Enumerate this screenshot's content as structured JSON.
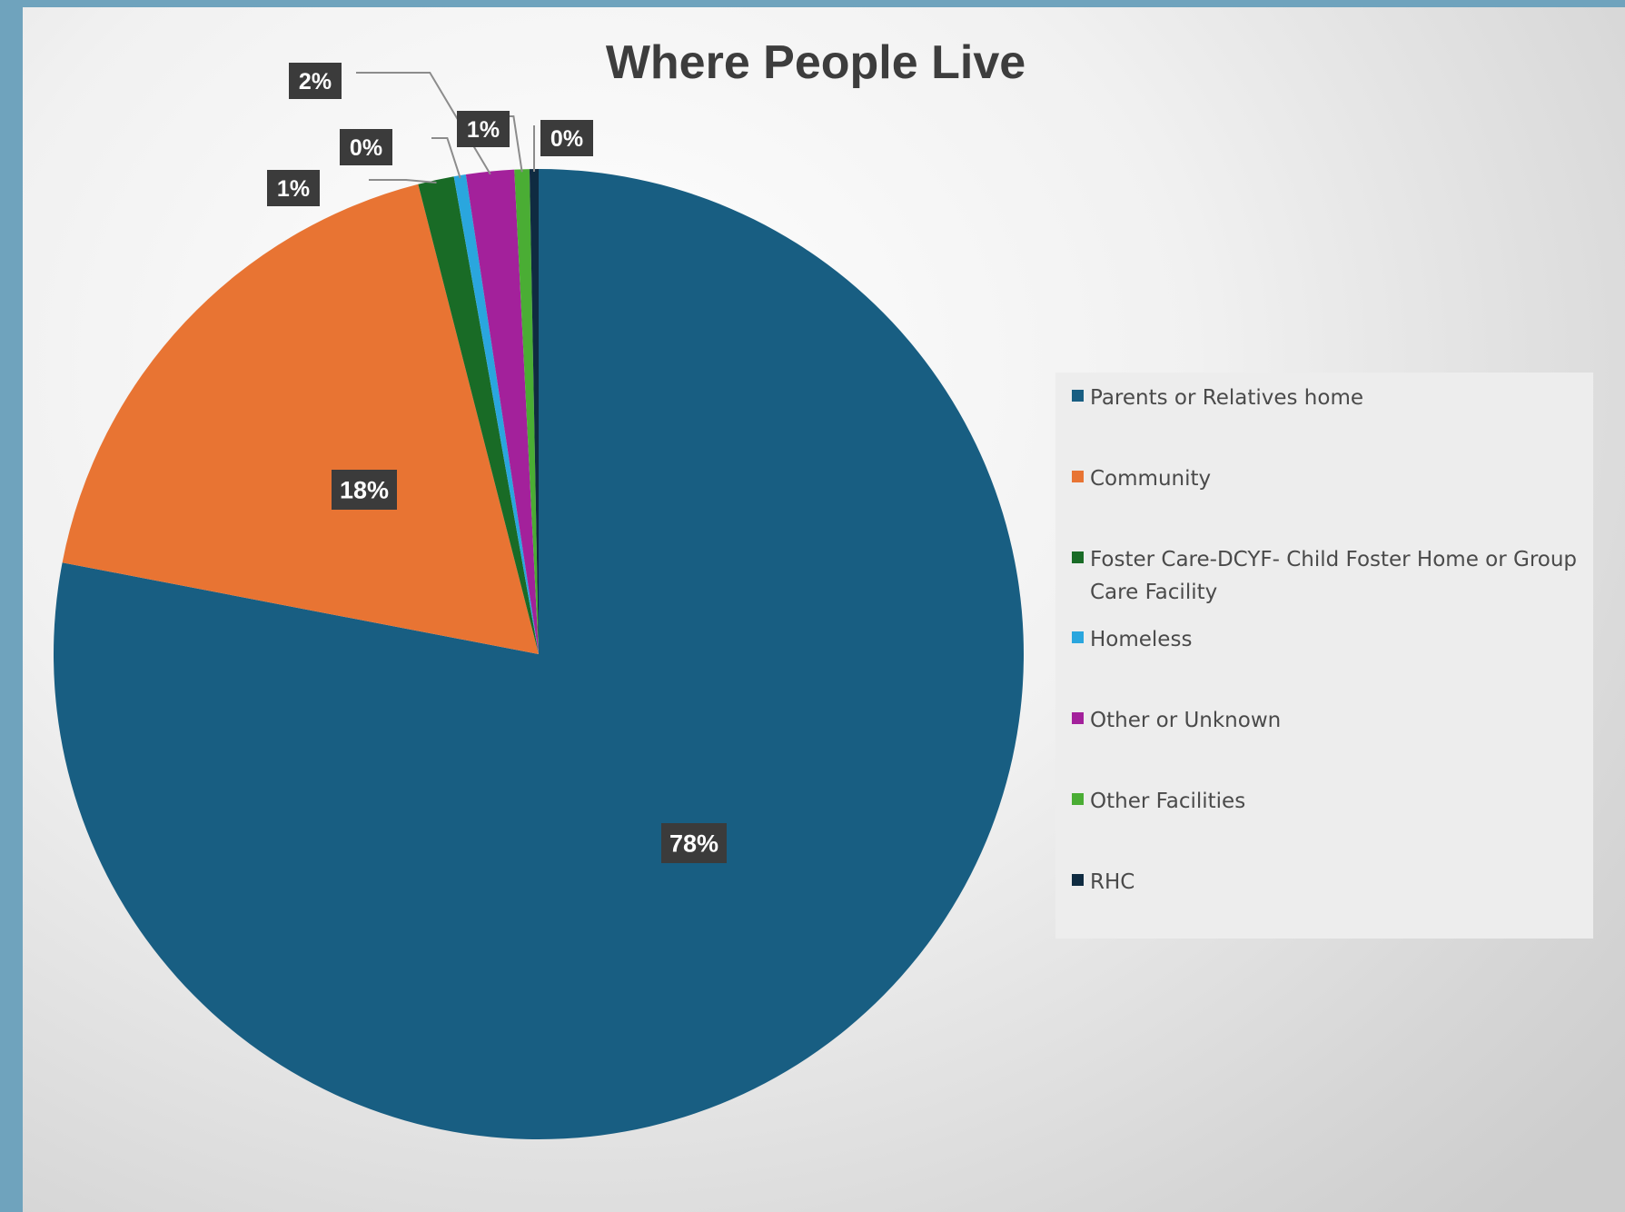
{
  "chart_data": {
    "type": "pie",
    "title": "Where People Live",
    "start_angle_deg": 0,
    "direction": "clockwise",
    "slices": [
      {
        "name": "Parents or Relatives home",
        "value": 78.1,
        "label": "78%",
        "color": "#185e82"
      },
      {
        "name": "Community",
        "value": 18.0,
        "label": "18%",
        "color": "#e87433"
      },
      {
        "name": "Foster Care-DCYF- Child Foster Home or Group Care Facility",
        "value": 1.2,
        "label": "1%",
        "color": "#196b26"
      },
      {
        "name": "Homeless",
        "value": 0.4,
        "label": "0%",
        "color": "#2aa6de"
      },
      {
        "name": "Other or Unknown",
        "value": 1.6,
        "label": "2%",
        "color": "#a3219b"
      },
      {
        "name": "Other Facilities",
        "value": 0.5,
        "label": "1%",
        "color": "#4aad34"
      },
      {
        "name": "RHC",
        "value": 0.3,
        "label": "0%",
        "color": "#0f2b41"
      }
    ],
    "legend": {
      "position": "right",
      "items": [
        {
          "lines": [
            "Parents or Relatives home"
          ],
          "color": "#185e82"
        },
        {
          "lines": [
            "Community"
          ],
          "color": "#e87433"
        },
        {
          "lines": [
            "Foster Care-DCYF- Child Foster Home or Group",
            "Care Facility"
          ],
          "color": "#196b26"
        },
        {
          "lines": [
            "Homeless"
          ],
          "color": "#2aa6de"
        },
        {
          "lines": [
            "Other or Unknown"
          ],
          "color": "#a3219b"
        },
        {
          "lines": [
            "Other Facilities"
          ],
          "color": "#4aad34"
        },
        {
          "lines": [
            "RHC"
          ],
          "color": "#0f2b41"
        }
      ]
    },
    "label_style": {
      "background": "#3b3b3b",
      "text_color": "#ffffff"
    }
  }
}
